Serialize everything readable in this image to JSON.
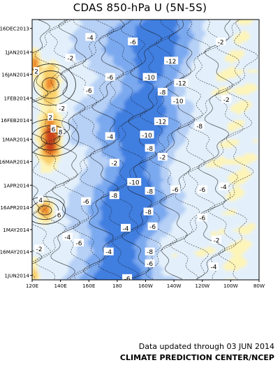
{
  "chart_data": {
    "type": "heatmap",
    "title": "CDAS 850-hPa U (5N-5S)",
    "x_ticks": [
      "120E",
      "140E",
      "160E",
      "180",
      "160W",
      "140W",
      "120W",
      "100W",
      "80W"
    ],
    "y_ticks": [
      "16DEC2013",
      "1JAN2014",
      "16JAN2014",
      "1FEB2014",
      "16FEB2014",
      "1MAR2014",
      "16MAR2014",
      "1APR2014",
      "16APR2014",
      "1MAY2014",
      "16MAY2014",
      "1JUN2014"
    ],
    "contour_interval": 2,
    "palette": {
      "strong_easterly": "#3f7ee0",
      "easterly": "#7aa9ef",
      "weak_easterly": "#b6d0f6",
      "near_zero": "#e3f0fb",
      "weak_westerly": "#fdf4b8",
      "westerly": "#f9cf69",
      "strong_westerly": "#ec8a2c",
      "very_strong_westerly": "#c9421a"
    },
    "contour_labels": [
      {
        "value": "-4",
        "lon": 161,
        "date": "2013-12-22"
      },
      {
        "value": "-6",
        "lon": 191,
        "date": "2013-12-25"
      },
      {
        "value": "-2",
        "lon": 253,
        "date": "2013-12-25"
      },
      {
        "value": "-12",
        "lon": 218,
        "date": "2014-01-07"
      },
      {
        "value": "-2",
        "lon": 147,
        "date": "2014-01-05"
      },
      {
        "value": "2",
        "lon": 123,
        "date": "2014-01-14"
      },
      {
        "value": "-10",
        "lon": 203,
        "date": "2014-01-18"
      },
      {
        "value": "-12",
        "lon": 225,
        "date": "2014-01-22"
      },
      {
        "value": "-6",
        "lon": 175,
        "date": "2014-01-18"
      },
      {
        "value": "-6",
        "lon": 160,
        "date": "2014-01-27"
      },
      {
        "value": "-8",
        "lon": 212,
        "date": "2014-01-28"
      },
      {
        "value": "-10",
        "lon": 223,
        "date": "2014-02-03"
      },
      {
        "value": "-2",
        "lon": 257,
        "date": "2014-02-02"
      },
      {
        "value": "-2",
        "lon": 141,
        "date": "2014-02-08"
      },
      {
        "value": "-12",
        "lon": 211,
        "date": "2014-02-17"
      },
      {
        "value": "-8",
        "lon": 238,
        "date": "2014-02-20"
      },
      {
        "value": "-10",
        "lon": 201,
        "date": "2014-02-26"
      },
      {
        "value": "-4",
        "lon": 175,
        "date": "2014-02-27"
      },
      {
        "value": "-8",
        "lon": 203,
        "date": "2014-03-07"
      },
      {
        "value": "-2",
        "lon": 212,
        "date": "2014-03-13"
      },
      {
        "value": "-2",
        "lon": 178,
        "date": "2014-03-17"
      },
      {
        "value": "-10",
        "lon": 192,
        "date": "2014-03-30"
      },
      {
        "value": "-6",
        "lon": 221,
        "date": "2014-04-04"
      },
      {
        "value": "-6",
        "lon": 240,
        "date": "2014-04-04"
      },
      {
        "value": "-4",
        "lon": 255,
        "date": "2014-04-02"
      },
      {
        "value": "-8",
        "lon": 203,
        "date": "2014-04-05"
      },
      {
        "value": "-8",
        "lon": 178,
        "date": "2014-04-08"
      },
      {
        "value": "-6",
        "lon": 158,
        "date": "2014-04-12"
      },
      {
        "value": "-8",
        "lon": 202,
        "date": "2014-04-19"
      },
      {
        "value": "-6",
        "lon": 240,
        "date": "2014-04-23"
      },
      {
        "value": "-4",
        "lon": 186,
        "date": "2014-04-30"
      },
      {
        "value": "-6",
        "lon": 205,
        "date": "2014-04-29"
      },
      {
        "value": "-4",
        "lon": 145,
        "date": "2014-05-06"
      },
      {
        "value": "-6",
        "lon": 153,
        "date": "2014-05-10"
      },
      {
        "value": "-8",
        "lon": 203,
        "date": "2014-05-16"
      },
      {
        "value": "-4",
        "lon": 174,
        "date": "2014-05-16"
      },
      {
        "value": "-2",
        "lon": 250,
        "date": "2014-05-08"
      },
      {
        "value": "-6",
        "lon": 203,
        "date": "2014-05-24"
      },
      {
        "value": "-4",
        "lon": 248,
        "date": "2014-05-26"
      },
      {
        "value": "-6",
        "lon": 187,
        "date": "2014-06-03"
      },
      {
        "value": "-2",
        "lon": 125,
        "date": "2014-05-14"
      },
      {
        "value": "2",
        "lon": 133,
        "date": "2014-02-14"
      },
      {
        "value": "6",
        "lon": 135,
        "date": "2014-02-22"
      },
      {
        "value": "8",
        "lon": 140,
        "date": "2014-02-24"
      },
      {
        "value": "4",
        "lon": 126,
        "date": "2014-04-11"
      },
      {
        "value": "6",
        "lon": 139,
        "date": "2014-04-21"
      }
    ],
    "xlim": [
      120,
      280
    ],
    "ylim": [
      "2013-12-10",
      "2014-06-04"
    ]
  },
  "footer": {
    "updated": "Data updated through 03 JUN 2014",
    "org": "CLIMATE PREDICTION CENTER/NCEP"
  }
}
